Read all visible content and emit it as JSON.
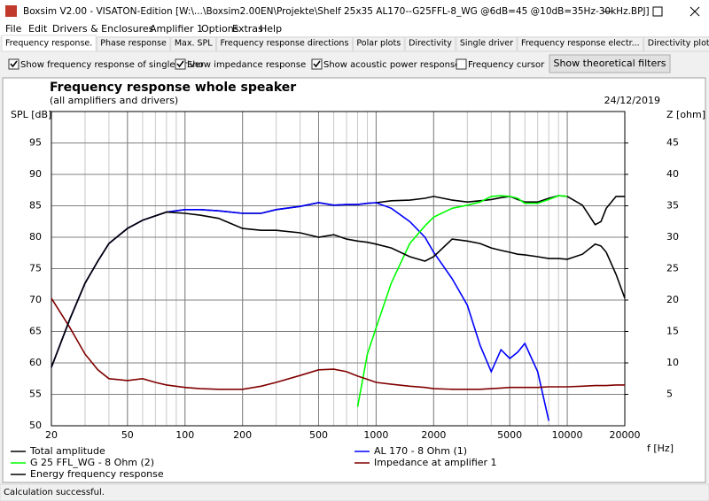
{
  "window": {
    "title": "Boxsim V2.00 - VISATON-Edition [W:\\...\\Boxsim2.00EN\\Projekte\\Shelf 25x35 AL170--G25FFL-8_WG @6dB=45 @10dB=35Hz-30kHz.BPJ]"
  },
  "menu": [
    "File",
    "Edit",
    "Drivers & Enclosures",
    "Amplifier 1",
    "Options",
    "Extras",
    "Help"
  ],
  "tabs": [
    "Frequency response.",
    "Phase response",
    "Max. SPL",
    "Frequency response directions",
    "Polar plots",
    "Directivity",
    "Single driver",
    "Frequency response electr...",
    "Directivity plots"
  ],
  "options": [
    {
      "label": "Show frequency response of single driver",
      "checked": true
    },
    {
      "label": "Show impedance response",
      "checked": true
    },
    {
      "label": "Show acoustic power response",
      "checked": true
    },
    {
      "label": "Frequency cursor",
      "checked": false
    }
  ],
  "button": "Show theoretical filters",
  "status": "Calculation successful.",
  "chart_data": {
    "type": "line",
    "title": "Frequency response whole speaker",
    "subtitle": "(all amplifiers and drivers)",
    "annotation": "24/12/2019",
    "ylabel": "SPL [dB]",
    "y2label": "Z [ohm]",
    "xlabel": "f [Hz]",
    "xscale": "log",
    "grid": true,
    "xlim": [
      20,
      20000
    ],
    "xticks": [
      20,
      50,
      100,
      200,
      500,
      1000,
      2000,
      5000,
      10000,
      20000
    ],
    "ylim": [
      50,
      100
    ],
    "yticks": [
      50,
      55,
      60,
      65,
      70,
      75,
      80,
      85,
      90,
      95
    ],
    "y2lim": [
      0,
      50
    ],
    "y2ticks": [
      5,
      10,
      15,
      20,
      25,
      30,
      35,
      40,
      45
    ],
    "x": [
      20,
      25,
      30,
      35,
      40,
      50,
      60,
      70,
      80,
      100,
      120,
      150,
      200,
      250,
      300,
      400,
      500,
      600,
      700,
      800,
      900,
      1000,
      1200,
      1500,
      1800,
      2000,
      2500,
      3000,
      3500,
      4000,
      4500,
      5000,
      5500,
      6000,
      7000,
      8000,
      9000,
      10000,
      12000,
      14000,
      15000,
      16000,
      18000,
      20000
    ],
    "series": [
      {
        "name": "Total amplitude",
        "color": "#000000",
        "values": [
          59.3,
          67,
          72.7,
          76.2,
          79,
          81.4,
          82.7,
          83.4,
          84,
          84.4,
          84.4,
          84.2,
          83.8,
          83.8,
          84.4,
          84.9,
          85.5,
          85.1,
          85.2,
          85.2,
          85.4,
          85.5,
          85.8,
          85.9,
          86.2,
          86.5,
          85.9,
          85.6,
          85.8,
          86,
          86.3,
          86.5,
          86,
          85.6,
          85.6,
          86.2,
          86.6,
          86.5,
          85.1,
          82,
          82.5,
          84.6,
          86.5,
          86.5
        ]
      },
      {
        "name": "AL 170 - 8 Ohm (1)",
        "color": "#0000ff",
        "values": [
          59.3,
          67,
          72.7,
          76.2,
          79,
          81.4,
          82.7,
          83.4,
          84,
          84.4,
          84.4,
          84.2,
          83.8,
          83.8,
          84.4,
          84.9,
          85.5,
          85.1,
          85.2,
          85.2,
          85.4,
          85.5,
          84.6,
          82.5,
          80,
          77.6,
          73.4,
          69.2,
          62.8,
          58.6,
          62.1,
          60.7,
          61.7,
          63.1,
          58.6,
          50.8,
          null,
          null,
          null,
          null,
          null,
          null,
          null,
          null
        ]
      },
      {
        "name": "G 25 FFL_WG - 8 Ohm (2)",
        "color": "#00ff00",
        "values": [
          null,
          null,
          null,
          null,
          null,
          null,
          null,
          null,
          null,
          null,
          null,
          null,
          null,
          null,
          null,
          null,
          null,
          null,
          null,
          53,
          61.4,
          65.6,
          72.7,
          79,
          81.8,
          83.2,
          84.6,
          85.1,
          85.6,
          86.5,
          86.6,
          86.5,
          86.2,
          85.4,
          85.4,
          86,
          86.6,
          86.5,
          null,
          null,
          null,
          null,
          null,
          null
        ]
      },
      {
        "name": "Impedance at amplifier 1",
        "color": "#800000",
        "axis": "y2",
        "values": [
          20.3,
          15.6,
          11.4,
          8.9,
          7.5,
          7.2,
          7.5,
          6.9,
          6.5,
          6.1,
          5.9,
          5.8,
          5.8,
          6.3,
          6.9,
          8,
          8.9,
          9,
          8.6,
          7.9,
          7.4,
          6.9,
          6.6,
          6.3,
          6.1,
          5.9,
          5.8,
          5.8,
          5.8,
          5.9,
          6,
          6.1,
          6.1,
          6.1,
          6.1,
          6.2,
          6.2,
          6.2,
          6.3,
          6.4,
          6.4,
          6.4,
          6.5,
          6.5
        ]
      },
      {
        "name": "Energy frequency response",
        "color": "#000000",
        "values": [
          59.3,
          67,
          72.7,
          76.2,
          79,
          81.4,
          82.7,
          83.4,
          84,
          83.8,
          83.5,
          83,
          81.4,
          81.1,
          81.1,
          80.7,
          80,
          80.4,
          79.7,
          79.4,
          79.2,
          78.9,
          78.3,
          76.9,
          76.2,
          76.9,
          79.7,
          79.4,
          79,
          78.3,
          77.9,
          77.6,
          77.3,
          77.2,
          76.9,
          76.6,
          76.6,
          76.5,
          77.3,
          78.9,
          78.6,
          77.6,
          74.1,
          70.3
        ]
      }
    ]
  }
}
